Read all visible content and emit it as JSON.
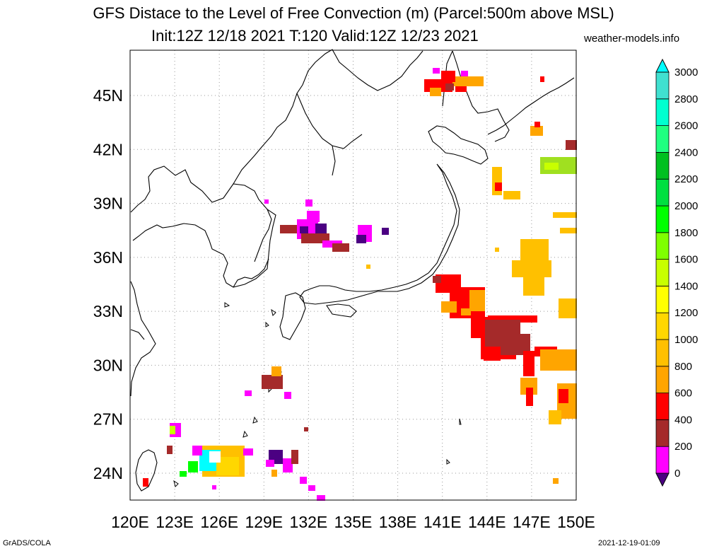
{
  "header": {
    "title": "GFS Distace to the Level of Free Convection (m) (Parcel:500m above MSL)",
    "subtitle": "Init:12Z 12/18 2021 T:120 Valid:12Z 12/23 2021",
    "site": "weather-models.info"
  },
  "footer": {
    "left": "GrADS/COLA",
    "right": "2021-12-19-01:09"
  },
  "map": {
    "lon_labels": [
      "120E",
      "123E",
      "126E",
      "129E",
      "132E",
      "135E",
      "138E",
      "141E",
      "144E",
      "147E",
      "150E"
    ],
    "lat_labels": [
      "45N",
      "42N",
      "39N",
      "36N",
      "33N",
      "30N",
      "27N",
      "24N"
    ]
  },
  "colorbar": {
    "levels": [
      "0",
      "200",
      "400",
      "600",
      "800",
      "1000",
      "1200",
      "1400",
      "1600",
      "1800",
      "2000",
      "2200",
      "2400",
      "2600",
      "2800",
      "3000"
    ],
    "colors": [
      "#4b0082",
      "#ff00ff",
      "#a52a2a",
      "#ff0000",
      "#ffa500",
      "#ffc000",
      "#ffd700",
      "#ffff00",
      "#c8ff00",
      "#7fff00",
      "#00ff00",
      "#00e040",
      "#00c020",
      "#20ff80",
      "#00ffd0",
      "#40e0d0",
      "#00ffff"
    ]
  }
}
